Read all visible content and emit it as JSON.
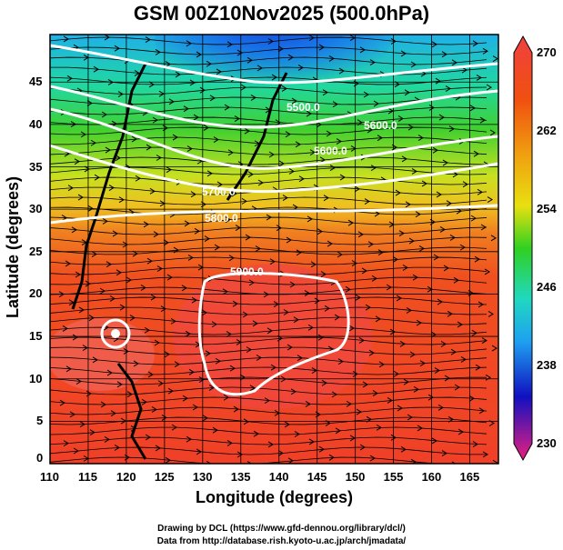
{
  "title": "GSM 00Z10Nov2025 (500.0hPa)",
  "axes": {
    "xlabel": "Longitude (degrees)",
    "ylabel": "Latitude  (degrees)",
    "xticks": [
      "110",
      "115",
      "120",
      "125",
      "130",
      "135",
      "140",
      "145",
      "150",
      "155",
      "160",
      "165"
    ],
    "yticks": [
      "0",
      "5",
      "10",
      "15",
      "20",
      "25",
      "30",
      "35",
      "40",
      "45"
    ],
    "xrange": [
      110,
      168.75
    ],
    "yrange": [
      0,
      50.6
    ]
  },
  "colorbar": {
    "labels": [
      "270",
      "262",
      "254",
      "246",
      "238",
      "230"
    ],
    "range": [
      230,
      270
    ],
    "colors": [
      "#e8207f",
      "#1010c0",
      "#1ea0f0",
      "#20d8c0",
      "#30d020",
      "#e8e010",
      "#f0a010",
      "#f04010",
      "#f04040"
    ]
  },
  "contours": [
    "5500.0",
    "5600.0",
    "5600.0",
    "5700.0",
    "5800.0",
    "5900.0"
  ],
  "credits": [
    "Drawing by DCL (https://www.gfd-dennou.org/library/dcl/)",
    "Data from http://database.rish.kyoto-u.ac.jp/arch/jmadata/"
  ]
}
